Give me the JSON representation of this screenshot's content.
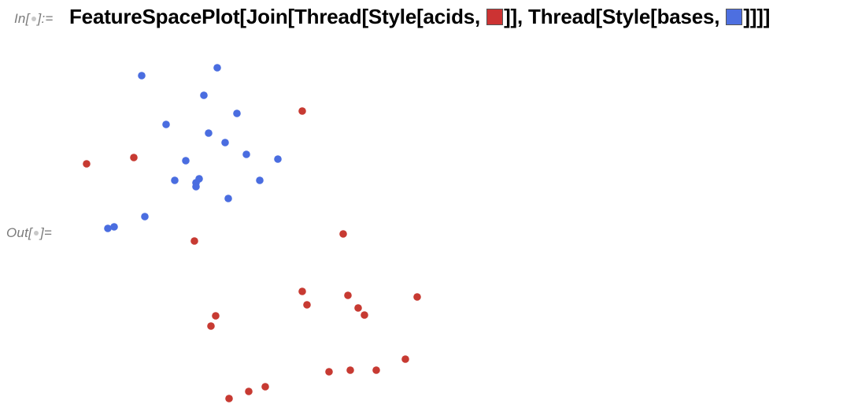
{
  "notebook": {
    "input_label": {
      "prefix": "In[",
      "suffix": "]:="
    },
    "output_label": {
      "prefix": "Out[",
      "suffix": "]="
    },
    "input_code": {
      "part1": "FeatureSpacePlot[Join[Thread[Style[acids, ",
      "part2": "]], Thread[Style[bases, ",
      "part3": "]]]]"
    },
    "swatch_red_color": "#cc3333",
    "swatch_blue_color": "#4d6fe0"
  },
  "chart_data": {
    "type": "scatter",
    "title": "",
    "xlabel": "",
    "ylabel": "",
    "axes_visible": false,
    "grid": false,
    "series": [
      {
        "color": "#c73a32",
        "x": [
          110,
          170,
          384,
          247,
          436,
          384,
          390,
          442,
          455,
          463,
          530,
          274,
          268,
          418,
          445,
          478,
          515,
          291,
          316,
          337
        ],
        "y": [
          -208,
          -200,
          -141,
          -306,
          -297,
          -370,
          -387,
          -375,
          -391,
          -400,
          -377,
          -401,
          -414,
          -472,
          -470,
          -470,
          -456,
          -506,
          -497,
          -491
        ]
      },
      {
        "color": "#4a6de0",
        "x": [
          180,
          276,
          259,
          301,
          211,
          265,
          286,
          313,
          353,
          236,
          222,
          253,
          249,
          249,
          330,
          290,
          184,
          137,
          145
        ],
        "y": [
          -96,
          -86,
          -121,
          -144,
          -158,
          -169,
          -181,
          -196,
          -202,
          -204,
          -229,
          -227,
          -232,
          -237,
          -229,
          -252,
          -275,
          -290,
          -288
        ]
      }
    ]
  }
}
